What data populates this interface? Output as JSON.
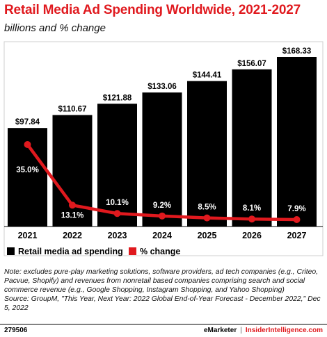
{
  "title": "Retail Media Ad Spending Worldwide, 2021-2027",
  "subtitle": "billions and % change",
  "colors": {
    "accent": "#e0191e",
    "bar": "#000000",
    "line": "#e0191e"
  },
  "chart_data": {
    "type": "bar",
    "categories": [
      "2021",
      "2022",
      "2023",
      "2024",
      "2025",
      "2026",
      "2027"
    ],
    "series": [
      {
        "name": "Retail media ad spending",
        "values": [
          97.84,
          110.67,
          121.88,
          133.06,
          144.41,
          156.07,
          168.33
        ],
        "labels": [
          "$97.84",
          "$110.67",
          "$121.88",
          "$133.06",
          "$144.41",
          "$156.07",
          "$168.33"
        ]
      },
      {
        "name": "% change",
        "values": [
          35.0,
          13.1,
          10.1,
          9.2,
          8.5,
          8.1,
          7.9
        ],
        "labels": [
          "35.0%",
          "13.1%",
          "10.1%",
          "9.2%",
          "8.5%",
          "8.1%",
          "7.9%"
        ]
      }
    ],
    "grid": false,
    "legend": "bottom-left"
  },
  "note": "Note: excludes pure-play marketing solutions, software providers, ad tech companies (e.g., Criteo, Pacvue, Shopify) and revenues from nonretail based companies comprising search and social commerce revenue (e.g., Google Shopping, Instagram Shopping, and Yahoo Shopping)",
  "source": "Source: GroupM, \"This Year, Next Year: 2022 Global End-of-Year Forecast - December 2022,\" Dec 5, 2022",
  "footer": {
    "id": "279506",
    "brand": "eMarketer",
    "brand2": "InsiderIntelligence.com"
  }
}
